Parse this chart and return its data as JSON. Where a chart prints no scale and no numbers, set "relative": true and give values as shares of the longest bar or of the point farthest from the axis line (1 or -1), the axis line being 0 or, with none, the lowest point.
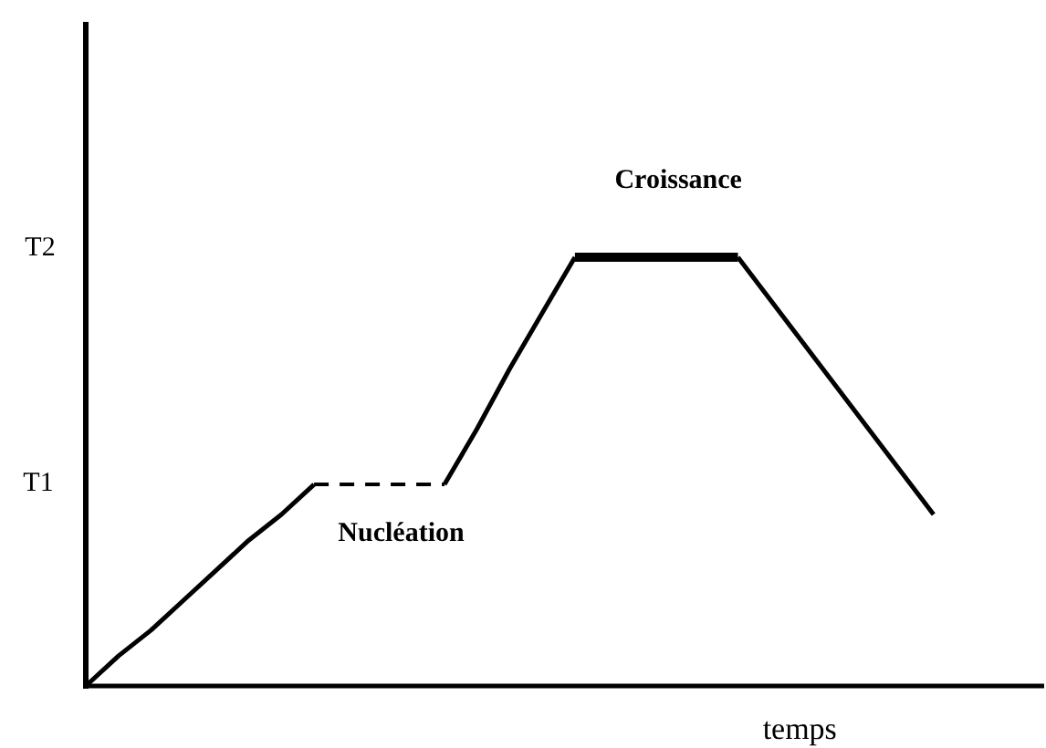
{
  "chart_data": {
    "type": "line",
    "relative": true,
    "xlabel": "temps",
    "line_style": "solid",
    "categories": [
      null,
      null,
      null,
      null,
      null,
      null,
      null,
      null,
      null,
      null,
      null,
      null,
      null,
      null,
      null,
      null,
      null,
      null,
      null,
      null,
      null,
      null,
      null,
      null,
      null,
      null,
      null,
      null,
      null,
      null
    ],
    "annotations": [
      "T2",
      "T1"
    ],
    "series": [
      {
        "color": "#000000",
        "values": [
          0,
          0.07,
          0.13,
          0.2,
          0.27,
          0.34,
          0.4,
          0.47,
          null,
          null,
          null,
          null,
          null,
          null,
          null,
          null,
          null,
          null,
          null,
          null,
          null,
          null,
          null,
          null,
          null,
          null,
          null,
          null,
          null,
          null
        ]
      },
      {
        "name": "Nucléation",
        "color": "#000000",
        "line_style": "dashed",
        "values": [
          null,
          null,
          null,
          null,
          null,
          null,
          null,
          0.47,
          0.47,
          0.47,
          0.47,
          0.47,
          null,
          null,
          null,
          null,
          null,
          null,
          null,
          null,
          null,
          null,
          null,
          null,
          null,
          null,
          null,
          null,
          null,
          null
        ]
      },
      {
        "color": "#000000",
        "values": [
          null,
          null,
          null,
          null,
          null,
          null,
          null,
          null,
          null,
          null,
          null,
          0.47,
          0.6,
          0.74,
          0.87,
          1,
          null,
          null,
          null,
          null,
          null,
          null,
          null,
          null,
          null,
          null,
          null,
          null,
          null,
          null
        ]
      },
      {
        "name": "Croissance",
        "color": "#000000",
        "values": [
          null,
          null,
          null,
          null,
          null,
          null,
          null,
          null,
          null,
          null,
          null,
          null,
          null,
          null,
          null,
          1,
          1,
          1,
          1,
          1,
          1,
          null,
          null,
          null,
          null,
          null,
          null,
          null,
          null,
          null
        ]
      },
      {
        "color": "#000000",
        "values": [
          null,
          null,
          null,
          null,
          null,
          null,
          null,
          null,
          null,
          null,
          null,
          null,
          null,
          null,
          null,
          null,
          null,
          null,
          null,
          null,
          1,
          0.9,
          0.8,
          0.7,
          0.6,
          0.5,
          0.4,
          null,
          null,
          null
        ]
      }
    ]
  }
}
